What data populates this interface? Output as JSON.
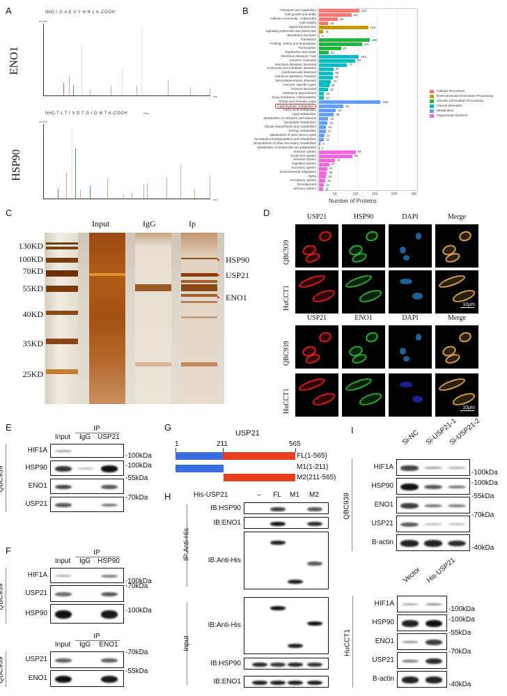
{
  "figure": {
    "panels": {
      "A": {
        "letter": "A",
        "spectra": [
          {
            "protein": "ENO1",
            "peptide": "NH2-I G A E V Y H N L K-COOH",
            "y_axis_label": "Int (%)",
            "y_ticks": [
              "0",
              "25",
              "50",
              "75",
              "100"
            ],
            "x_axis_label": "m/z",
            "x_ticks": [
              "0",
              "50",
              "100",
              "150",
              "200",
              "250",
              "300",
              "350",
              "400",
              "450",
              "500",
              "550",
              "600",
              "650",
              "700",
              "750",
              "800",
              "850",
              "900"
            ]
          },
          {
            "protein": "HSP90",
            "peptide": "NH2-T L T I V D T G I G M T K-COOH",
            "y_axis_label": "Int (%)",
            "y_ticks": [
              "0",
              "25",
              "50",
              "75",
              "100"
            ],
            "x_axis_label": "m/z",
            "x_ticks": [
              "0",
              "100",
              "200",
              "300",
              "400",
              "500",
              "600",
              "700",
              "800",
              "900",
              "1,000",
              "1,100"
            ],
            "annotation": "Prec"
          }
        ]
      },
      "B": {
        "letter": "B",
        "xlabel": "Number of Proteins",
        "x_ticks": [
          "50",
          "100",
          "150",
          "200",
          "250"
        ],
        "highlighted": "Carbohydrate metabolism",
        "legend": [
          {
            "label": "Cellular Processes",
            "color": "#f8766d"
          },
          {
            "label": "Environmental Information Processing",
            "color": "#c49a00"
          },
          {
            "label": "Genetic Information Processing",
            "color": "#1db83a"
          },
          {
            "label": "Human Diseases",
            "color": "#00bfc4"
          },
          {
            "label": "Metabolism",
            "color": "#619cff"
          },
          {
            "label": "Organismal Systems",
            "color": "#f564e3"
          }
        ]
      },
      "C": {
        "letter": "C",
        "lanes": [
          "Input",
          "IgG",
          "Ip"
        ],
        "markers": [
          "130KD",
          "100KD",
          "70KD",
          "55KD",
          "40KD",
          "35KD",
          "25KD"
        ],
        "targets": [
          "HSP90",
          "USP21",
          "ENO1"
        ]
      },
      "D": {
        "letter": "D",
        "block1": {
          "columns": [
            "USP21",
            "HSP90",
            "DAPI",
            "Merge"
          ],
          "rows": [
            "QBC939",
            "HuCCT1"
          ]
        },
        "block2": {
          "columns": [
            "USP21",
            "ENO1",
            "DAPI",
            "Merge"
          ],
          "rows": [
            "QBC939",
            "HuCCT1"
          ]
        },
        "scale_bar": "10μm"
      },
      "E": {
        "letter": "E",
        "ip_label": "IP",
        "lanes": [
          "Input",
          "IgG",
          "USP21"
        ],
        "cell_line": "QBC939",
        "blots": [
          {
            "label": "HIF1A",
            "kda": "100kDa"
          },
          {
            "label": "HSP90",
            "kda": "100kDa"
          },
          {
            "label": "ENO1",
            "kda": "55kDa"
          },
          {
            "label": "USP21",
            "kda": "70kDa"
          }
        ]
      },
      "F": {
        "letter": "F",
        "ip_label": "IP",
        "top": {
          "lanes": [
            "Input",
            "IgG",
            "HSP90"
          ],
          "cell_line": "QBC939",
          "blots": [
            {
              "label": "HIF1A",
              "kda": "100kDa"
            },
            {
              "label": "USP21",
              "kda": "70kDa"
            },
            {
              "label": "HSP90",
              "kda": "100kDa"
            }
          ]
        },
        "bottom": {
          "lanes": [
            "Input",
            "IgG",
            "ENO1"
          ],
          "cell_line": "QBC939",
          "blots": [
            {
              "label": "USP21",
              "kda": "70kDa"
            },
            {
              "label": "ENO1",
              "kda": "55kDa"
            }
          ]
        }
      },
      "G": {
        "letter": "G",
        "title": "USP21",
        "positions": [
          "1",
          "211",
          "565"
        ],
        "constructs": [
          {
            "label": "FL(1-565)"
          },
          {
            "label": "M1(1-211)"
          },
          {
            "label": "M2(211-565)"
          }
        ],
        "colors": {
          "n_term": "#3a6de0",
          "c_term": "#e8401c"
        }
      },
      "H": {
        "letter": "H",
        "his_label": "His-USP21",
        "lanes": [
          "–",
          "FL",
          "M1",
          "M2"
        ],
        "ip_group": "IP:Anti-His",
        "input_group": "Input",
        "ip_blots": [
          "IB:HSP90",
          "IB:ENO1",
          "IB:Anti-His"
        ],
        "input_blots": [
          "IB:Anti-His",
          "IB:HSP90",
          "IB:ENO1"
        ]
      },
      "I": {
        "letter": "I",
        "top": {
          "lanes": [
            "Si-NC",
            "Si-USP21-1",
            "Si-USP21-2"
          ],
          "cell_line": "QBC939",
          "blots": [
            {
              "label": "HIF1A",
              "kda": "100kDa"
            },
            {
              "label": "HSP90",
              "kda": "100kDa"
            },
            {
              "label": "ENO1",
              "kda": "55kDa"
            },
            {
              "label": "USP21",
              "kda": "70kDa"
            },
            {
              "label": "B-actin",
              "kda": "40kDa"
            }
          ]
        },
        "bottom": {
          "lanes": [
            "Vector",
            "His-USP21"
          ],
          "cell_line": "HuCCT1",
          "blots": [
            {
              "label": "HIF1A",
              "kda": "100kDa"
            },
            {
              "label": "HSP90",
              "kda": "100kDa"
            },
            {
              "label": "ENO1",
              "kda": "55kDa"
            },
            {
              "label": "USP21",
              "kda": "70kDa"
            },
            {
              "label": "B-actin",
              "kda": "40kDa"
            }
          ]
        }
      }
    }
  },
  "chart_data": {
    "type": "bar",
    "orientation": "horizontal",
    "title": "",
    "xlabel": "Number of Proteins",
    "ylabel": "",
    "xlim": [
      0,
      250
    ],
    "grid": true,
    "legend_position": "right",
    "categories": [
      "Transport and catabolism",
      "Cell growth and death",
      "Cellular community - eukaryotes",
      "Cell motility",
      "Signal transduction",
      "Signaling molecules and interaction",
      "Membrane transport",
      "Translation",
      "Folding, sorting and degradation",
      "Transcription",
      "Replication and repair",
      "Infectious diseases: Viral",
      "Cancers: Overview",
      "Infectious diseases: Bacterial",
      "Endocrine and metabolic diseases",
      "Cardiovascular diseases",
      "Infectious diseases: Parasitic",
      "Neurodegenerative diseases",
      "Cancers: Specific types",
      "Immune diseases",
      "Substance dependence",
      "Drug resistance: Antineoplastic",
      "Global and overview maps",
      "Carbohydrate metabolism",
      "Amino acid metabolism",
      "Lipid metabolism",
      "Metabolism of cofactors and vitamins",
      "Nucleotide metabolism",
      "Glycan biosynthesis and metabolism",
      "Energy metabolism",
      "Metabolism of other amino acids",
      "Xenobiotics biodegradation and metabolism",
      "Biosynthesis of other secondary metabolites",
      "Metabolism of terpenoids and polyketides",
      "Immune system",
      "Endocrine system",
      "Nervous system",
      "Digestive system",
      "Excretory system",
      "Environmental adaptation",
      "Aging",
      "Circulatory system",
      "Development",
      "Sensory system"
    ],
    "values": [
      103,
      84,
      48,
      24,
      126,
      11,
      2,
      130,
      110,
      57,
      25,
      102,
      93,
      71,
      37,
      36,
      35,
      31,
      26,
      23,
      13,
      12,
      158,
      63,
      43,
      38,
      24,
      22,
      18,
      17,
      14,
      12,
      4,
      1,
      94,
      86,
      41,
      27,
      21,
      20,
      18,
      16,
      12,
      11
    ],
    "groups": [
      "Cellular Processes",
      "Cellular Processes",
      "Cellular Processes",
      "Cellular Processes",
      "Environmental Information Processing",
      "Environmental Information Processing",
      "Environmental Information Processing",
      "Genetic Information Processing",
      "Genetic Information Processing",
      "Genetic Information Processing",
      "Genetic Information Processing",
      "Human Diseases",
      "Human Diseases",
      "Human Diseases",
      "Human Diseases",
      "Human Diseases",
      "Human Diseases",
      "Human Diseases",
      "Human Diseases",
      "Human Diseases",
      "Human Diseases",
      "Human Diseases",
      "Metabolism",
      "Metabolism",
      "Metabolism",
      "Metabolism",
      "Metabolism",
      "Metabolism",
      "Metabolism",
      "Metabolism",
      "Metabolism",
      "Metabolism",
      "Metabolism",
      "Metabolism",
      "Organismal Systems",
      "Organismal Systems",
      "Organismal Systems",
      "Organismal Systems",
      "Organismal Systems",
      "Organismal Systems",
      "Organismal Systems",
      "Organismal Systems",
      "Organismal Systems",
      "Organismal Systems"
    ],
    "x_ticks": [
      50,
      100,
      150,
      200,
      250
    ]
  }
}
